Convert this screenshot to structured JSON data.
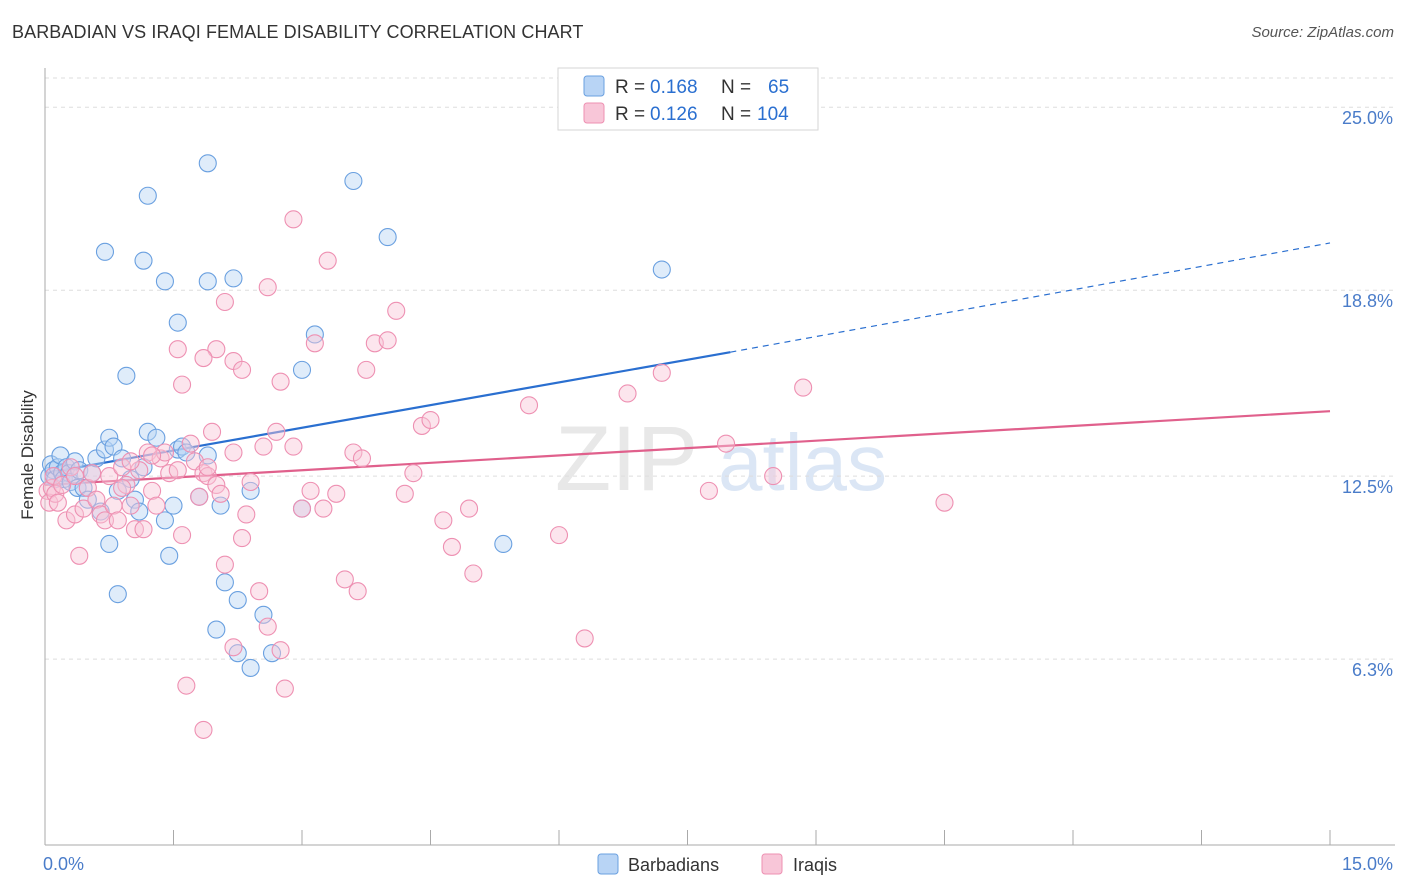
{
  "title": "BARBADIAN VS IRAQI FEMALE DISABILITY CORRELATION CHART",
  "source": "Source: ZipAtlas.com",
  "watermark": {
    "zip": "ZIP",
    "atlas": "atlas"
  },
  "colors": {
    "blue_fill": "#b8d4f5",
    "blue_stroke": "#6aa0e0",
    "blue_line": "#2a6fd0",
    "pink_fill": "#f8c6d8",
    "pink_stroke": "#ee90b2",
    "pink_line": "#e0608c",
    "axis_label": "#4a7cc9",
    "grid": "#dddddd"
  },
  "legend": {
    "blue": {
      "r_label": "R =",
      "r_value": "0.168",
      "n_label": "N =",
      "n_value": "65"
    },
    "pink": {
      "r_label": "R =",
      "r_value": "0.126",
      "n_label": "N =",
      "n_value": "104"
    }
  },
  "chart_data": {
    "type": "scatter",
    "xlabel": "",
    "ylabel": "Female Disability",
    "xlim": [
      0,
      15
    ],
    "ylim": [
      0,
      26.6
    ],
    "x_tick_labels": [
      {
        "value": 0,
        "label": "0.0%"
      },
      {
        "value": 15,
        "label": "15.0%"
      }
    ],
    "x_minor_ticks": [
      1.5,
      3.0,
      4.5,
      6.0,
      7.5,
      9.0,
      10.5,
      12.0,
      13.5,
      15.0
    ],
    "y_ticks": [
      {
        "value": 6.3,
        "label": "6.3%"
      },
      {
        "value": 12.5,
        "label": "12.5%"
      },
      {
        "value": 18.8,
        "label": "18.8%"
      },
      {
        "value": 25.0,
        "label": "25.0%"
      }
    ],
    "grid": true,
    "series": [
      {
        "name": "Barbadians",
        "color": "blue",
        "trend": {
          "x0": 0.0,
          "y0": 12.6,
          "x1": 8.0,
          "y1": 16.7,
          "dash_x1": 15.0,
          "dash_y1": 20.4
        },
        "points": [
          [
            0.05,
            12.5
          ],
          [
            0.07,
            12.9
          ],
          [
            0.1,
            12.7
          ],
          [
            0.12,
            12.4
          ],
          [
            0.15,
            12.8
          ],
          [
            0.18,
            13.2
          ],
          [
            0.2,
            12.6
          ],
          [
            0.22,
            12.4
          ],
          [
            0.25,
            12.8
          ],
          [
            0.28,
            12.6
          ],
          [
            0.3,
            12.3
          ],
          [
            0.35,
            13.0
          ],
          [
            0.38,
            12.1
          ],
          [
            0.4,
            12.7
          ],
          [
            0.45,
            12.1
          ],
          [
            0.5,
            11.7
          ],
          [
            0.55,
            12.6
          ],
          [
            0.6,
            13.1
          ],
          [
            0.65,
            11.3
          ],
          [
            0.7,
            13.4
          ],
          [
            0.75,
            13.8
          ],
          [
            0.8,
            13.5
          ],
          [
            0.85,
            12.0
          ],
          [
            0.9,
            13.1
          ],
          [
            1.0,
            12.4
          ],
          [
            1.05,
            11.7
          ],
          [
            1.1,
            11.3
          ],
          [
            1.15,
            12.8
          ],
          [
            1.2,
            14.0
          ],
          [
            1.3,
            13.8
          ],
          [
            1.4,
            11.0
          ],
          [
            1.5,
            11.5
          ],
          [
            1.55,
            13.4
          ],
          [
            1.6,
            13.5
          ],
          [
            1.65,
            13.3
          ],
          [
            1.8,
            11.8
          ],
          [
            1.9,
            13.2
          ],
          [
            2.05,
            11.5
          ],
          [
            2.1,
            8.9
          ],
          [
            2.25,
            8.3
          ],
          [
            2.4,
            12.0
          ],
          [
            2.55,
            7.8
          ],
          [
            2.65,
            6.5
          ],
          [
            0.7,
            20.1
          ],
          [
            0.95,
            15.9
          ],
          [
            1.15,
            19.8
          ],
          [
            1.4,
            19.1
          ],
          [
            1.2,
            22.0
          ],
          [
            1.55,
            17.7
          ],
          [
            1.9,
            19.1
          ],
          [
            2.2,
            19.2
          ],
          [
            2.0,
            7.3
          ],
          [
            1.9,
            23.1
          ],
          [
            2.25,
            6.5
          ],
          [
            2.4,
            6.0
          ],
          [
            3.0,
            11.4
          ],
          [
            3.0,
            16.1
          ],
          [
            3.15,
            17.3
          ],
          [
            3.6,
            22.5
          ],
          [
            4.0,
            20.6
          ],
          [
            5.35,
            10.2
          ],
          [
            7.2,
            19.5
          ],
          [
            1.45,
            9.8
          ],
          [
            0.85,
            8.5
          ],
          [
            0.75,
            10.2
          ]
        ]
      },
      {
        "name": "Iraqis",
        "color": "pink",
        "trend": {
          "x0": 0.0,
          "y0": 12.2,
          "x1": 15.0,
          "y1": 14.7
        },
        "points": [
          [
            0.03,
            12.0
          ],
          [
            0.05,
            11.6
          ],
          [
            0.08,
            12.1
          ],
          [
            0.1,
            12.5
          ],
          [
            0.12,
            11.9
          ],
          [
            0.15,
            11.6
          ],
          [
            0.2,
            12.2
          ],
          [
            0.25,
            11.0
          ],
          [
            0.3,
            12.8
          ],
          [
            0.35,
            11.2
          ],
          [
            0.4,
            9.8
          ],
          [
            0.45,
            11.4
          ],
          [
            0.5,
            12.1
          ],
          [
            0.55,
            12.6
          ],
          [
            0.6,
            11.7
          ],
          [
            0.65,
            11.2
          ],
          [
            0.7,
            11.0
          ],
          [
            0.75,
            12.5
          ],
          [
            0.8,
            11.5
          ],
          [
            0.85,
            11.0
          ],
          [
            0.9,
            12.8
          ],
          [
            0.95,
            12.2
          ],
          [
            1.0,
            11.5
          ],
          [
            1.05,
            10.7
          ],
          [
            1.1,
            12.7
          ],
          [
            1.15,
            10.7
          ],
          [
            1.2,
            13.3
          ],
          [
            1.25,
            12.0
          ],
          [
            1.3,
            11.5
          ],
          [
            1.35,
            13.1
          ],
          [
            1.4,
            13.3
          ],
          [
            1.45,
            12.6
          ],
          [
            1.55,
            12.7
          ],
          [
            1.6,
            10.5
          ],
          [
            1.7,
            13.6
          ],
          [
            1.75,
            13.0
          ],
          [
            1.8,
            11.8
          ],
          [
            1.85,
            12.6
          ],
          [
            1.9,
            12.5
          ],
          [
            1.95,
            14.0
          ],
          [
            2.0,
            12.2
          ],
          [
            2.05,
            11.9
          ],
          [
            2.1,
            9.5
          ],
          [
            2.2,
            6.7
          ],
          [
            2.3,
            10.4
          ],
          [
            2.35,
            11.2
          ],
          [
            2.4,
            12.3
          ],
          [
            2.5,
            8.6
          ],
          [
            2.55,
            13.5
          ],
          [
            2.6,
            7.4
          ],
          [
            2.7,
            14.0
          ],
          [
            2.75,
            6.6
          ],
          [
            2.8,
            5.3
          ],
          [
            2.9,
            13.5
          ],
          [
            3.0,
            11.4
          ],
          [
            3.1,
            12.0
          ],
          [
            3.15,
            17.0
          ],
          [
            3.25,
            11.4
          ],
          [
            3.4,
            11.9
          ],
          [
            3.5,
            9.0
          ],
          [
            3.6,
            13.3
          ],
          [
            3.65,
            8.6
          ],
          [
            3.7,
            13.1
          ],
          [
            3.75,
            16.1
          ],
          [
            3.85,
            17.0
          ],
          [
            4.0,
            17.1
          ],
          [
            4.1,
            18.1
          ],
          [
            4.2,
            11.9
          ],
          [
            4.3,
            12.6
          ],
          [
            4.4,
            14.2
          ],
          [
            4.5,
            14.4
          ],
          [
            4.65,
            11.0
          ],
          [
            4.75,
            10.1
          ],
          [
            4.95,
            11.4
          ],
          [
            5.0,
            9.2
          ],
          [
            5.65,
            14.9
          ],
          [
            6.0,
            10.5
          ],
          [
            6.3,
            7.0
          ],
          [
            6.8,
            15.3
          ],
          [
            7.2,
            16.0
          ],
          [
            7.75,
            12.0
          ],
          [
            7.95,
            13.6
          ],
          [
            8.5,
            12.5
          ],
          [
            8.85,
            15.5
          ],
          [
            10.5,
            11.6
          ],
          [
            2.0,
            16.8
          ],
          [
            2.1,
            18.4
          ],
          [
            2.2,
            16.4
          ],
          [
            2.3,
            16.1
          ],
          [
            2.6,
            18.9
          ],
          [
            2.75,
            15.7
          ],
          [
            2.9,
            21.2
          ],
          [
            3.3,
            19.8
          ],
          [
            1.55,
            16.8
          ],
          [
            1.6,
            15.6
          ],
          [
            1.85,
            16.5
          ],
          [
            1.65,
            5.4
          ],
          [
            1.85,
            3.9
          ],
          [
            1.9,
            12.8
          ],
          [
            0.9,
            12.1
          ],
          [
            0.35,
            12.5
          ],
          [
            1.25,
            13.2
          ],
          [
            2.2,
            13.3
          ],
          [
            1.0,
            13.0
          ]
        ]
      }
    ]
  },
  "bottom_legend": {
    "blue_label": "Barbadians",
    "pink_label": "Iraqis"
  }
}
